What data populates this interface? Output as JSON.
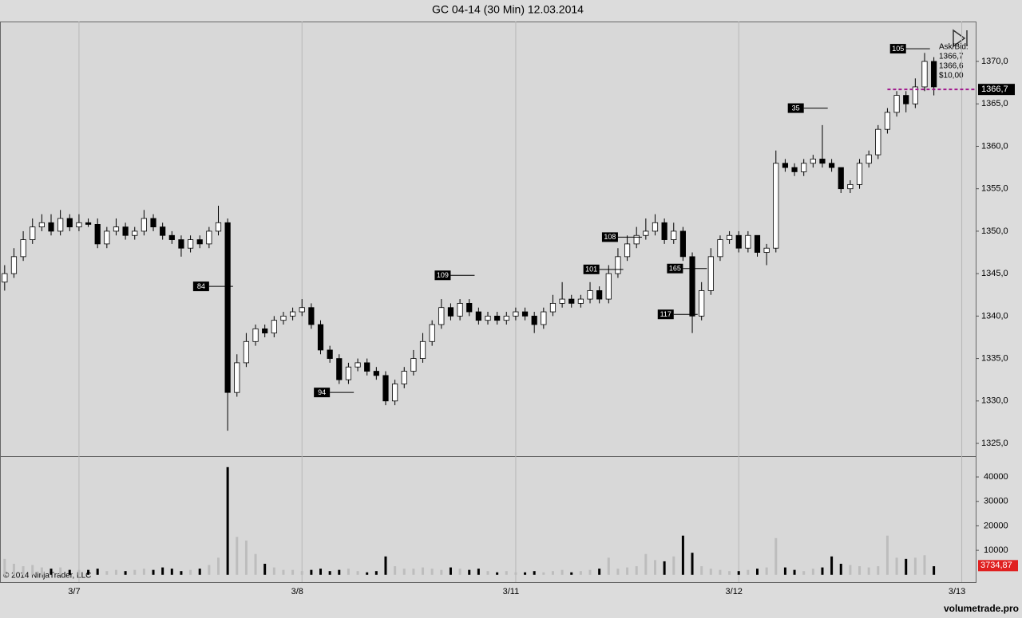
{
  "chart_data": {
    "type": "candlestick",
    "title": "GC 04-14 (30 Min)  12.03.2014",
    "copyright": "© 2014 NinjaTrader, LLC",
    "watermark": "volumetrade.pro",
    "ask_bid": {
      "heading": "Ask/Bid:",
      "ask": "1366,7",
      "bid": "1366,6",
      "tick_value": "$10,00"
    },
    "last_price": {
      "value": 1366.7,
      "label": "1366,7"
    },
    "volume_last": {
      "value": 3734.87,
      "label": "3734,87"
    },
    "up_color": "#ffffff",
    "down_color": "#000000",
    "price_line_color": "#a0188c",
    "volume_label_color": "#e02020",
    "xlim": [
      -0.5,
      104.5
    ],
    "xticks": [
      {
        "value": 8,
        "label": "3/7"
      },
      {
        "value": 32,
        "label": "3/8"
      },
      {
        "value": 55,
        "label": "3/11"
      },
      {
        "value": 79,
        "label": "3/12"
      },
      {
        "value": 103,
        "label": "3/13"
      }
    ],
    "ylim": [
      1323.5,
      1374.7
    ],
    "yticks": [
      {
        "value": 1325,
        "label": "1325,0"
      },
      {
        "value": 1330,
        "label": "1330,0"
      },
      {
        "value": 1335,
        "label": "1335,0"
      },
      {
        "value": 1340,
        "label": "1340,0"
      },
      {
        "value": 1345,
        "label": "1345,0"
      },
      {
        "value": 1350,
        "label": "1350,0"
      },
      {
        "value": 1355,
        "label": "1355,0"
      },
      {
        "value": 1360,
        "label": "1360,0"
      },
      {
        "value": 1365,
        "label": "1365,0"
      },
      {
        "value": 1370,
        "label": "1370,0"
      }
    ],
    "y2lim": [
      -3000,
      48500
    ],
    "y2ticks": [
      10000,
      20000,
      30000,
      40000
    ],
    "open": [
      1344,
      1345,
      1347,
      1349,
      1350.5,
      1351,
      1350,
      1351.5,
      1350.5,
      1351,
      1350.8,
      1348.5,
      1350,
      1350.5,
      1349.5,
      1350,
      1351.5,
      1350.5,
      1349.5,
      1349,
      1348,
      1349,
      1348.5,
      1350,
      1351,
      1331,
      1334.5,
      1337,
      1338.5,
      1338,
      1339.5,
      1340,
      1340.5,
      1341,
      1339,
      1336,
      1335,
      1332.5,
      1334,
      1334.5,
      1333.5,
      1333,
      1330,
      1332,
      1333.5,
      1335,
      1337,
      1339,
      1341,
      1340,
      1341.5,
      1340.5,
      1339.5,
      1340,
      1339.5,
      1340,
      1340.5,
      1340,
      1339,
      1340.5,
      1341.5,
      1342,
      1341.5,
      1342,
      1343,
      1342,
      1345,
      1347,
      1348.5,
      1349.5,
      1350,
      1351,
      1349,
      1350,
      1347,
      1340,
      1343,
      1347,
      1349,
      1349.5,
      1348,
      1349.5,
      1347.5,
      1348,
      1358,
      1357.5,
      1357,
      1358,
      1358.5,
      1358,
      1357.5,
      1355,
      1355.5,
      1358,
      1359,
      1362,
      1364,
      1366,
      1365,
      1367,
      1370
    ],
    "high": [
      1346,
      1348,
      1350,
      1351.5,
      1352,
      1352,
      1352.5,
      1352,
      1352,
      1351.5,
      1351.5,
      1350.5,
      1351.5,
      1351,
      1350.5,
      1352.5,
      1352,
      1351,
      1350,
      1349.5,
      1349.5,
      1349.5,
      1350.5,
      1353,
      1351.5,
      1335.5,
      1338,
      1339,
      1339,
      1340,
      1340.5,
      1341,
      1342,
      1341.5,
      1339.5,
      1336.5,
      1335.5,
      1334.5,
      1335,
      1335,
      1334,
      1333.5,
      1332.5,
      1334,
      1336,
      1338,
      1339.5,
      1342,
      1341.5,
      1342,
      1342,
      1341,
      1340.5,
      1340.5,
      1340.5,
      1341,
      1341,
      1340.5,
      1341,
      1342.5,
      1344,
      1342.5,
      1342.5,
      1344,
      1343.5,
      1346,
      1348,
      1349.5,
      1350.5,
      1351.5,
      1352,
      1351.5,
      1351,
      1350.5,
      1347.5,
      1344,
      1348,
      1349.5,
      1350,
      1350,
      1350,
      1349.5,
      1348.5,
      1359.5,
      1358.5,
      1358,
      1358.5,
      1359,
      1362.5,
      1358.5,
      1357.5,
      1356,
      1358.5,
      1359.5,
      1362.5,
      1364.5,
      1366.5,
      1366.5,
      1368,
      1371,
      1370.5
    ],
    "low": [
      1343,
      1344.5,
      1346.5,
      1348.5,
      1350,
      1349.5,
      1349.5,
      1350,
      1350,
      1350.5,
      1348,
      1348,
      1349.5,
      1349,
      1349,
      1349.5,
      1350,
      1349,
      1348.5,
      1347,
      1347.5,
      1348,
      1348,
      1349.5,
      1326.5,
      1330.5,
      1334,
      1336.5,
      1337.5,
      1337.5,
      1339,
      1339.5,
      1340,
      1338.5,
      1335.5,
      1334.5,
      1332,
      1332,
      1333.5,
      1333,
      1332.5,
      1329.5,
      1329.5,
      1331.5,
      1333,
      1334.5,
      1336.5,
      1338.5,
      1339.5,
      1339.5,
      1340,
      1339,
      1339,
      1339,
      1339,
      1339.5,
      1339.5,
      1338,
      1338.5,
      1340,
      1341,
      1341,
      1341,
      1341.5,
      1341.5,
      1341.5,
      1344.5,
      1346.5,
      1348,
      1349,
      1349.5,
      1348.5,
      1348.5,
      1346.5,
      1338,
      1339.5,
      1342.5,
      1346.5,
      1348.5,
      1347.5,
      1347.5,
      1347,
      1346,
      1347.5,
      1357,
      1356.5,
      1356.5,
      1357.5,
      1357.5,
      1357,
      1354.5,
      1354.5,
      1355,
      1357.5,
      1358.5,
      1361.5,
      1363.5,
      1364,
      1364.5,
      1366.5,
      1366
    ],
    "close": [
      1345,
      1347,
      1349,
      1350.5,
      1351,
      1350,
      1351.5,
      1350.5,
      1351,
      1350.8,
      1348.5,
      1350,
      1350.5,
      1349.5,
      1350,
      1351.5,
      1350.5,
      1349.5,
      1349,
      1348,
      1349,
      1348.5,
      1350,
      1351,
      1331,
      1334.5,
      1337,
      1338.5,
      1338,
      1339.5,
      1340,
      1340.5,
      1341,
      1339,
      1336,
      1335,
      1332.5,
      1334,
      1334.5,
      1333.5,
      1333,
      1330,
      1332,
      1333.5,
      1335,
      1337,
      1339,
      1341,
      1340,
      1341.5,
      1340.5,
      1339.5,
      1340,
      1339.5,
      1340,
      1340.5,
      1340,
      1339,
      1340.5,
      1341.5,
      1342,
      1341.5,
      1342,
      1343,
      1342,
      1345,
      1347,
      1348.5,
      1349.5,
      1350,
      1351,
      1349,
      1350,
      1347,
      1340,
      1343,
      1347,
      1349,
      1349.5,
      1348,
      1349.5,
      1347.5,
      1348,
      1358,
      1357.5,
      1357,
      1358,
      1358.5,
      1358,
      1357.5,
      1355,
      1355.5,
      1358,
      1359,
      1362,
      1364,
      1366,
      1365,
      1367,
      1370,
      1367
    ],
    "volume": [
      6500,
      4500,
      3500,
      4000,
      3000,
      2500,
      3000,
      2000,
      2000,
      2000,
      2500,
      1500,
      2000,
      1500,
      2000,
      2500,
      2000,
      3000,
      2500,
      1500,
      2000,
      2500,
      4000,
      7000,
      44000,
      15500,
      14000,
      8500,
      4500,
      3000,
      2000,
      2000,
      1500,
      2000,
      2500,
      1500,
      2000,
      2500,
      1500,
      1000,
      1500,
      7500,
      3500,
      2500,
      2500,
      3000,
      2500,
      2000,
      3000,
      2500,
      2000,
      2500,
      1500,
      1000,
      1500,
      1000,
      1000,
      1500,
      1000,
      1500,
      2000,
      1000,
      1500,
      2000,
      2500,
      7000,
      2500,
      3000,
      3500,
      8500,
      6000,
      5500,
      7500,
      16000,
      9000,
      3500,
      2500,
      2000,
      1500,
      1500,
      2000,
      2500,
      3000,
      15000,
      3000,
      2000,
      1500,
      2500,
      3000,
      7500,
      4500,
      4000,
      3500,
      3000,
      3500,
      16000,
      7000,
      6500,
      7000,
      8000,
      3500
    ],
    "annotations": [
      {
        "text": "84",
        "x": 22,
        "y": 1343.5
      },
      {
        "text": "94",
        "x": 35,
        "y": 1331
      },
      {
        "text": "109",
        "x": 48,
        "y": 1344.8
      },
      {
        "text": "101",
        "x": 64,
        "y": 1345.5
      },
      {
        "text": "108",
        "x": 66,
        "y": 1349.3
      },
      {
        "text": "117",
        "x": 72,
        "y": 1340.2
      },
      {
        "text": "165",
        "x": 73,
        "y": 1345.6
      },
      {
        "text": "35",
        "x": 86,
        "y": 1364.5
      },
      {
        "text": "105",
        "x": 97,
        "y": 1371.5
      }
    ]
  }
}
